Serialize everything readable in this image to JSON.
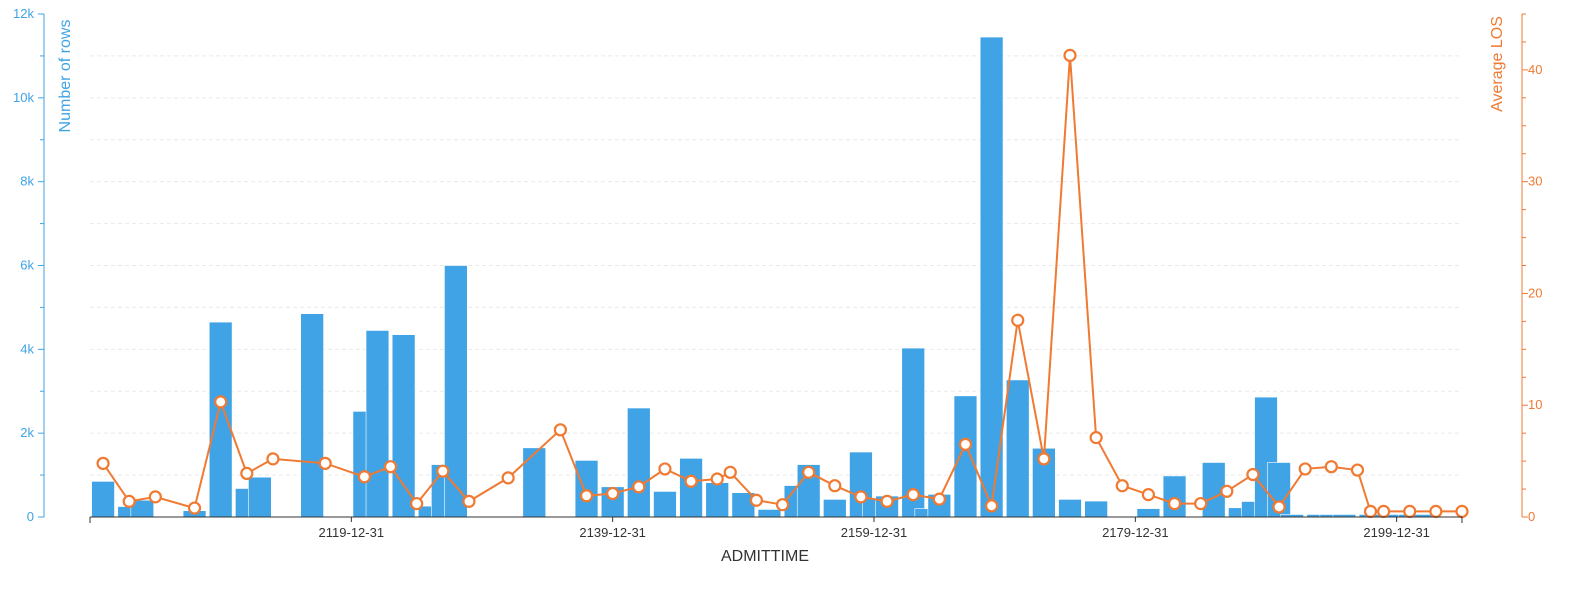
{
  "chart_data": {
    "type": "bar",
    "xlabel": "ADMITTIME",
    "ylabel": "Number of rows",
    "y2label": "Average LOS",
    "ylim": [
      0,
      12000
    ],
    "y2lim": [
      0,
      45
    ],
    "xlim": [
      2100,
      2205
    ],
    "grid": true,
    "x_tick_labels": [
      "2119-12-31",
      "2139-12-31",
      "2159-12-31",
      "2179-12-31",
      "2199-12-31"
    ],
    "x_ticks": [
      2120,
      2140,
      2160,
      2180,
      2200
    ],
    "y_ticks": [
      0,
      2000,
      4000,
      6000,
      8000,
      10000,
      12000
    ],
    "y_tick_labels": [
      "0",
      "2k",
      "4k",
      "6k",
      "8k",
      "10k",
      "12k"
    ],
    "y2_ticks": [
      0,
      10,
      20,
      30,
      40
    ],
    "y2_tick_labels": [
      "0",
      "10",
      "20",
      "30",
      "40"
    ],
    "bar_color": "#3fa3e6",
    "line_color": "#f07a32",
    "series": [
      {
        "name": "Number of rows",
        "kind": "bar",
        "x": [
          2101,
          2103,
          2104,
          2108,
          2110,
          2112,
          2113,
          2117,
          2121,
          2122,
          2124,
          2126,
          2127,
          2128,
          2134,
          2138,
          2140,
          2142,
          2144,
          2146,
          2148,
          2150,
          2152,
          2154,
          2155,
          2157,
          2159,
          2160,
          2161,
          2163,
          2164,
          2165,
          2167,
          2169,
          2171,
          2173,
          2175,
          2177,
          2181,
          2183,
          2186,
          2188,
          2189,
          2190,
          2191,
          2192,
          2194,
          2195,
          2196,
          2198,
          2200,
          2201,
          2202
        ],
        "values": [
          850,
          250,
          400,
          150,
          4650,
          680,
          950,
          4850,
          2520,
          4450,
          4350,
          260,
          1250,
          6000,
          1650,
          1350,
          720,
          2600,
          610,
          1400,
          820,
          580,
          180,
          750,
          1250,
          420,
          1550,
          440,
          500,
          4030,
          200,
          540,
          2890,
          11450,
          3270,
          1640,
          420,
          380,
          200,
          980,
          1300,
          220,
          370,
          2860,
          1300,
          60,
          60,
          60,
          60,
          60,
          60,
          60,
          60
        ]
      },
      {
        "name": "Average LOS",
        "kind": "line",
        "x": [
          2101,
          2103,
          2105,
          2108,
          2110,
          2112,
          2114,
          2118,
          2121,
          2123,
          2125,
          2127,
          2129,
          2132,
          2136,
          2138,
          2140,
          2142,
          2144,
          2146,
          2148,
          2149,
          2151,
          2153,
          2155,
          2157,
          2159,
          2161,
          2163,
          2165,
          2167,
          2169,
          2171,
          2173,
          2175,
          2177,
          2179,
          2181,
          2183,
          2185,
          2187,
          2189,
          2191,
          2193,
          2195,
          2197,
          2198,
          2199,
          2201,
          2203,
          2205
        ],
        "values": [
          4.8,
          1.4,
          1.8,
          0.8,
          10.3,
          3.9,
          5.2,
          4.8,
          3.6,
          4.5,
          1.2,
          4.1,
          1.4,
          3.5,
          7.8,
          1.9,
          2.1,
          2.7,
          4.3,
          3.2,
          3.4,
          4.0,
          1.5,
          1.1,
          4.0,
          2.8,
          1.8,
          1.4,
          2.0,
          1.6,
          6.5,
          1.0,
          17.6,
          5.2,
          41.3,
          7.1,
          2.8,
          2.0,
          1.2,
          1.2,
          2.3,
          3.8,
          0.9,
          4.3,
          4.5,
          4.2,
          0.5,
          0.5,
          0.5,
          0.5,
          0.5
        ]
      }
    ]
  }
}
